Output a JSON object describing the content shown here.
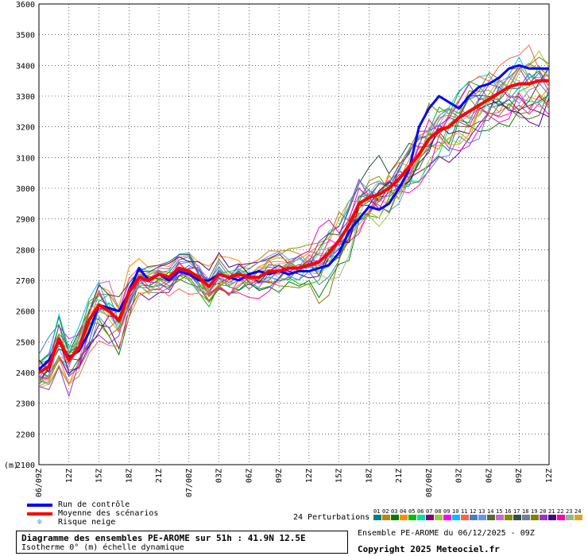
{
  "chart_data": {
    "type": "line",
    "title": "Diagramme des ensembles PE-AROME sur 51h : 41.9N 12.5E",
    "subtitle": "Isotherme 0° (m) échelle dynamique",
    "ylabel": "(m)",
    "ylim": [
      2100,
      3600
    ],
    "yticks": [
      "3600",
      "3500",
      "3400",
      "3300",
      "3200",
      "3100",
      "3000",
      "2900",
      "2800",
      "2700",
      "2600",
      "2500",
      "2400",
      "2300",
      "2200",
      "2100"
    ],
    "xlim": [
      0,
      51
    ],
    "xticks": [
      {
        "h": 0,
        "label": "06/09Z"
      },
      {
        "h": 3,
        "label": "12Z"
      },
      {
        "h": 6,
        "label": "15Z"
      },
      {
        "h": 9,
        "label": "18Z"
      },
      {
        "h": 12,
        "label": "21Z"
      },
      {
        "h": 15,
        "label": "07/00Z"
      },
      {
        "h": 18,
        "label": "03Z"
      },
      {
        "h": 21,
        "label": "06Z"
      },
      {
        "h": 24,
        "label": "09Z"
      },
      {
        "h": 27,
        "label": "12Z"
      },
      {
        "h": 30,
        "label": "15Z"
      },
      {
        "h": 33,
        "label": "18Z"
      },
      {
        "h": 36,
        "label": "21Z"
      },
      {
        "h": 39,
        "label": "08/00Z"
      },
      {
        "h": 42,
        "label": "03Z"
      },
      {
        "h": 45,
        "label": "06Z"
      },
      {
        "h": 48,
        "label": "09Z"
      },
      {
        "h": 51,
        "label": "12Z"
      }
    ],
    "grid": true,
    "series": [
      {
        "name": "Run de contrôle",
        "color": "#0000ff",
        "width": 3,
        "values": [
          2410,
          2440,
          2500,
          2450,
          2470,
          2530,
          2620,
          2610,
          2600,
          2660,
          2740,
          2700,
          2720,
          2700,
          2730,
          2720,
          2700,
          2700,
          2720,
          2710,
          2700,
          2720,
          2730,
          2720,
          2730,
          2720,
          2730,
          2730,
          2740,
          2750,
          2790,
          2860,
          2900,
          2940,
          2930,
          2950,
          3000,
          3060,
          3200,
          3260,
          3300,
          3280,
          3260,
          3300,
          3330,
          3340,
          3360,
          3390,
          3400,
          3390,
          3390,
          3390
        ]
      },
      {
        "name": "Moyenne des scénarios",
        "color": "#ff0000",
        "width": 4,
        "values": [
          2400,
          2420,
          2510,
          2440,
          2480,
          2570,
          2620,
          2600,
          2570,
          2660,
          2710,
          2700,
          2720,
          2710,
          2740,
          2730,
          2710,
          2680,
          2720,
          2710,
          2720,
          2710,
          2710,
          2730,
          2730,
          2740,
          2740,
          2750,
          2760,
          2790,
          2830,
          2880,
          2950,
          2970,
          2980,
          3000,
          3030,
          3070,
          3110,
          3160,
          3190,
          3200,
          3230,
          3250,
          3270,
          3290,
          3310,
          3330,
          3340,
          3340,
          3350,
          3350
        ]
      }
    ],
    "perturbation_count": 24,
    "perturbation_colors": [
      "#008080",
      "#b8860b",
      "#008000",
      "#ff8c00",
      "#00c000",
      "#00e0a0",
      "#800080",
      "#9acd32",
      "#ff00ff",
      "#00bfff",
      "#ff6347",
      "#4682b4",
      "#6495ed",
      "#556b2f",
      "#cc66cc",
      "#8b8b00",
      "#2f4f4f",
      "#708090",
      "#808000",
      "#9932cc",
      "#4b0082",
      "#ff00aa",
      "#8fbc8f",
      "#daa520"
    ]
  },
  "legend": {
    "control": "Run de contrôle",
    "mean": "Moyenne des scénarios",
    "snow": "Risque neige",
    "snow_icon": "snowflake-icon"
  },
  "perturbations": {
    "label": "24 Perturbations",
    "numbers": [
      "01",
      "02",
      "03",
      "04",
      "05",
      "06",
      "07",
      "08",
      "09",
      "10",
      "11",
      "12",
      "13",
      "14",
      "15",
      "16",
      "17",
      "18",
      "19",
      "20",
      "21",
      "22",
      "23",
      "24"
    ]
  },
  "footer": {
    "title": "Diagramme des ensembles PE-AROME sur 51h : 41.9N 12.5E",
    "subtitle": "Isotherme 0° (m) échelle dynamique",
    "ensemble": "Ensemble PE-AROME du 06/12/2025 - 09Z",
    "copyright": "Copyright 2025 Meteociel.fr"
  }
}
